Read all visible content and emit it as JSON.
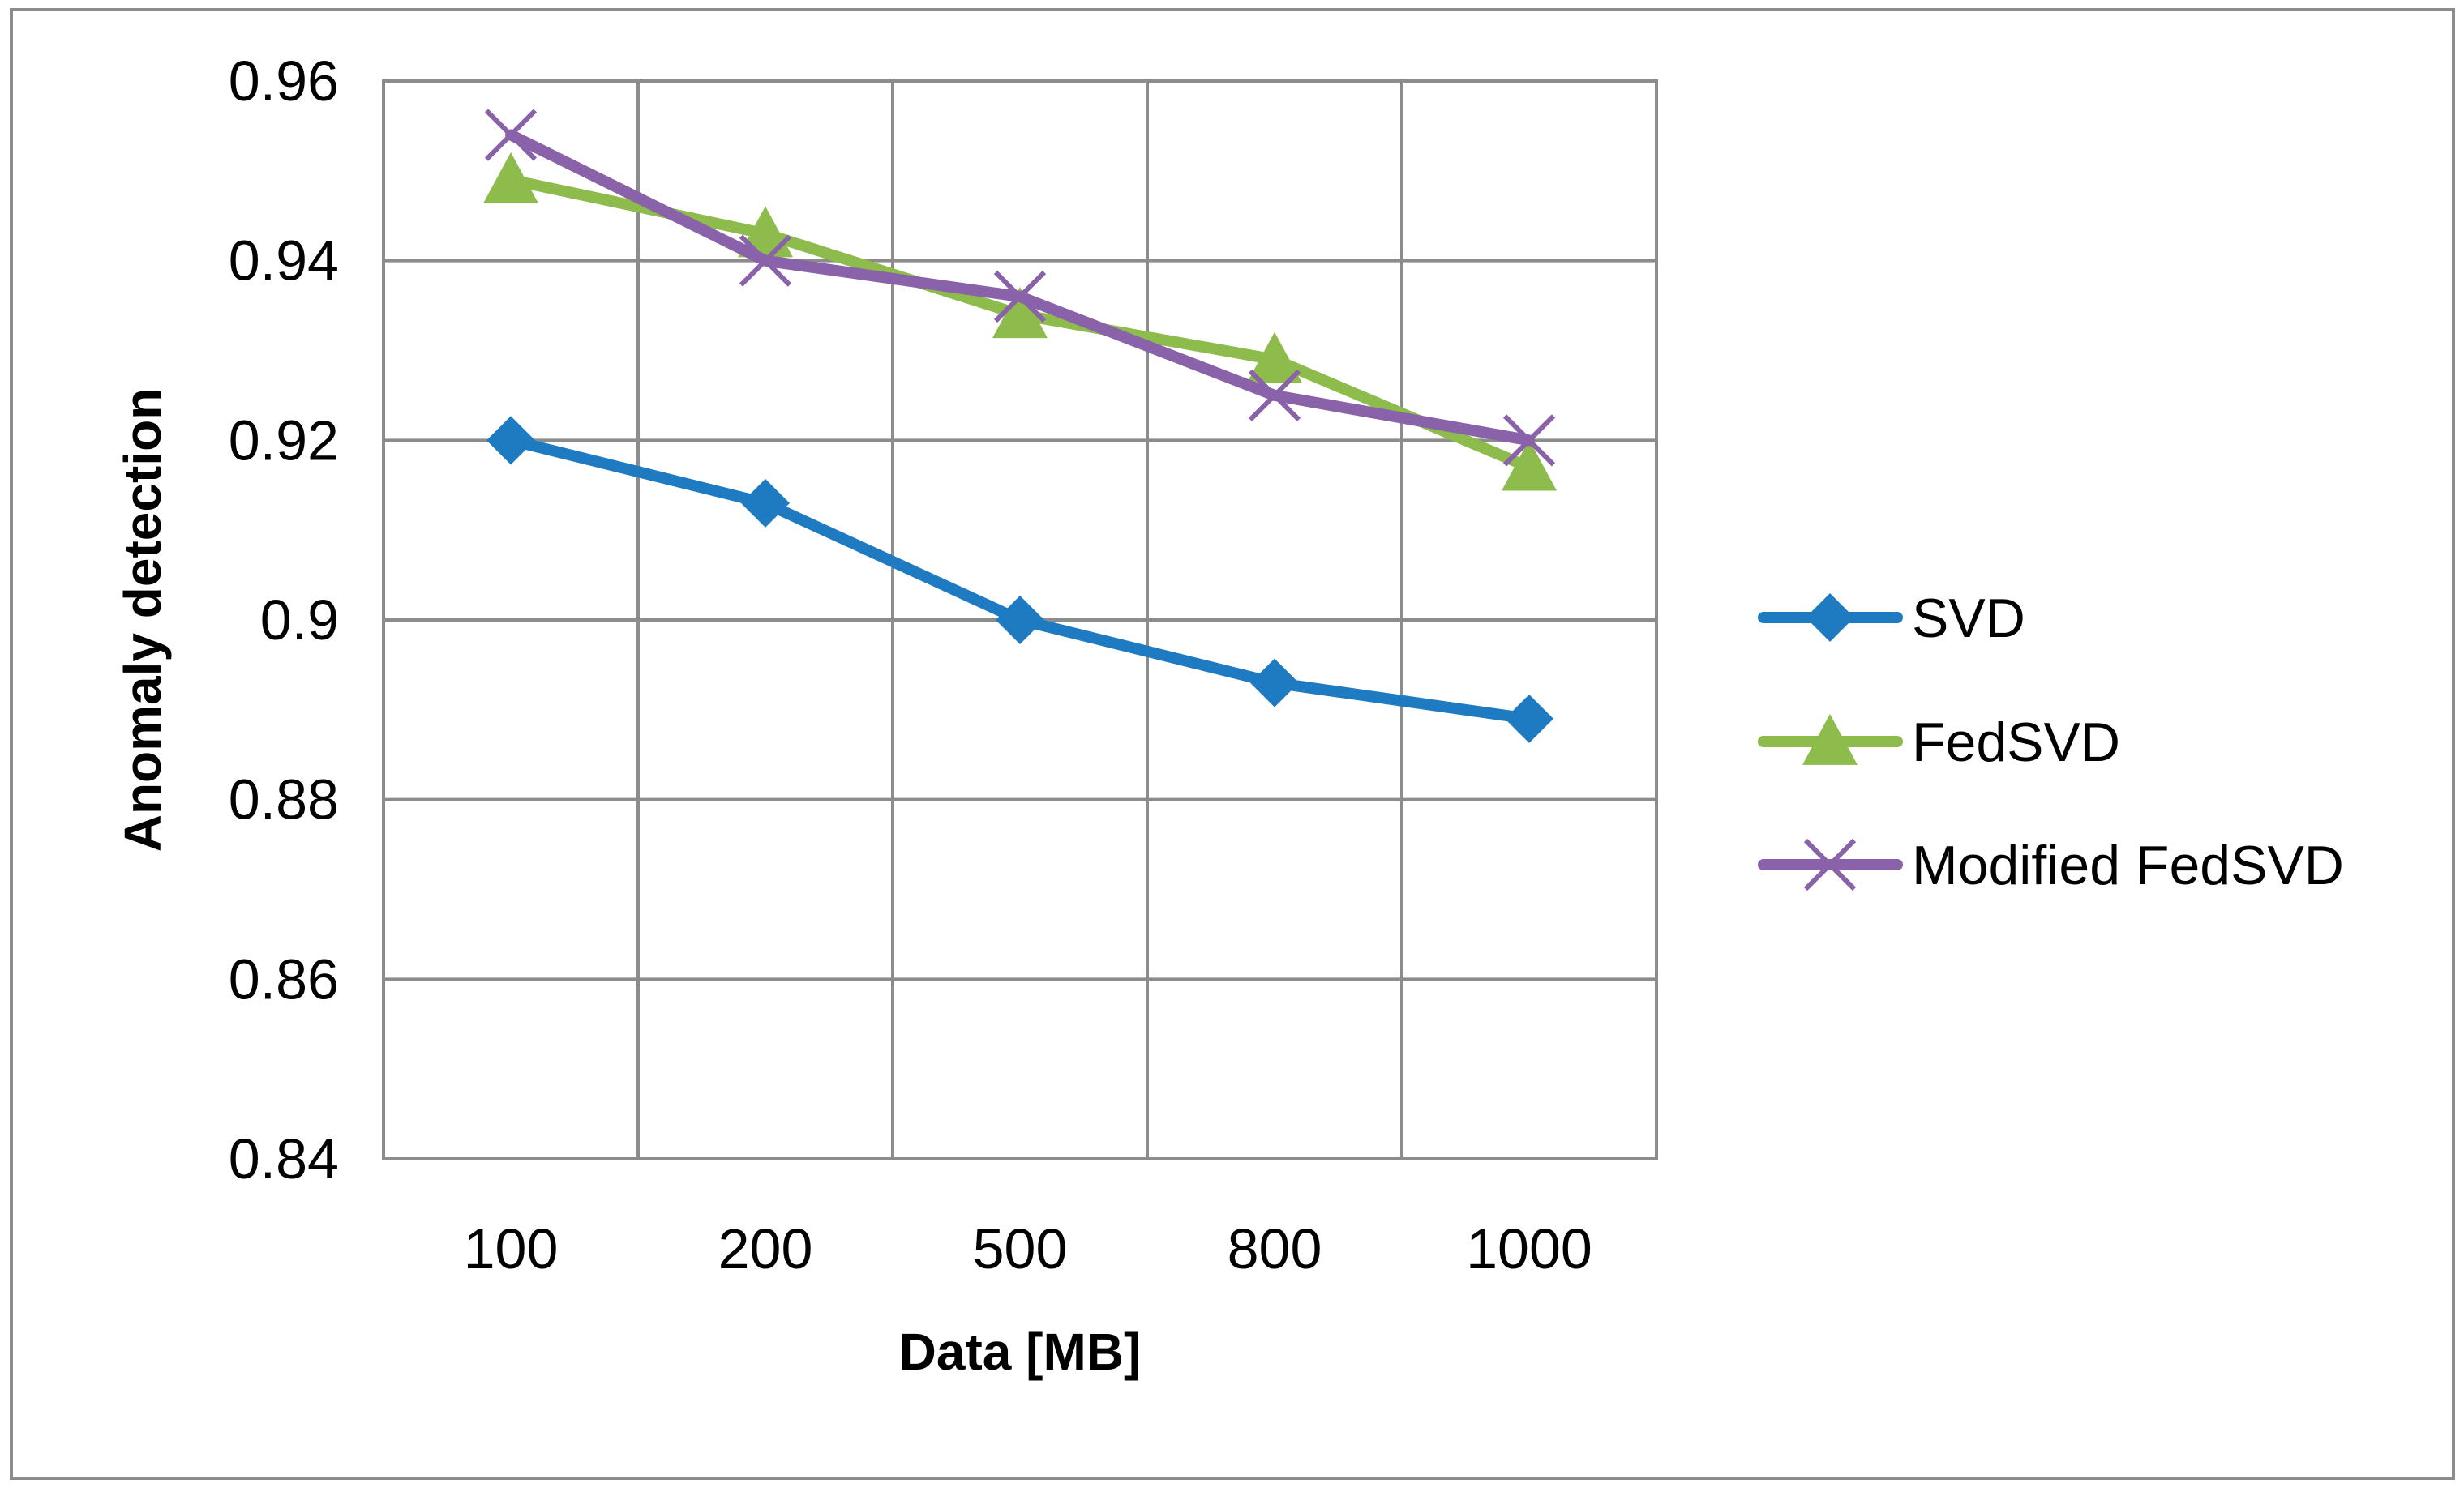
{
  "chart_data": {
    "type": "line",
    "title": "",
    "xlabel": "Data [MB]",
    "ylabel": "Anomaly detection",
    "categories": [
      "100",
      "200",
      "500",
      "800",
      "1000"
    ],
    "ylim": [
      0.84,
      0.96
    ],
    "yticks": [
      0.84,
      0.86,
      0.88,
      0.9,
      0.92,
      0.94,
      0.96
    ],
    "ytick_labels": [
      "0.84",
      "0.86",
      "0.88",
      "0.9",
      "0.92",
      "0.94",
      "0.96"
    ],
    "grid": true,
    "legend_position": "right",
    "series": [
      {
        "name": "SVD",
        "marker": "diamond",
        "color": "#1F7BC1",
        "values": [
          0.92,
          0.913,
          0.9,
          0.893,
          0.889
        ]
      },
      {
        "name": "FedSVD",
        "marker": "triangle",
        "color": "#8DBB4C",
        "values": [
          0.949,
          0.943,
          0.934,
          0.929,
          0.917
        ]
      },
      {
        "name": "Modified FedSVD",
        "marker": "x",
        "color": "#8A62A9",
        "values": [
          0.954,
          0.94,
          0.936,
          0.925,
          0.92
        ]
      }
    ]
  }
}
